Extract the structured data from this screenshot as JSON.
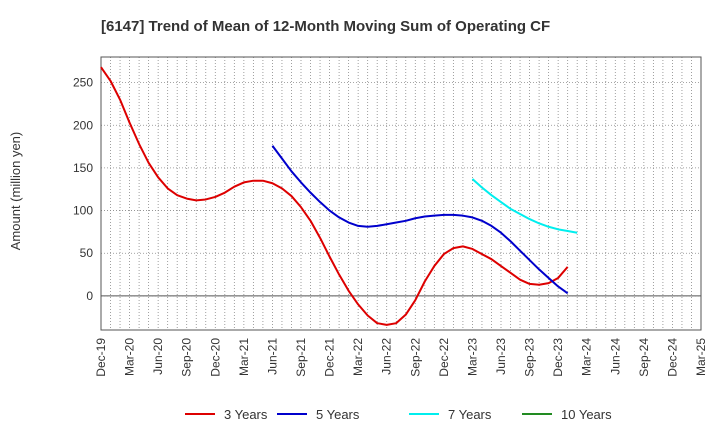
{
  "chart_data": {
    "type": "line",
    "title": "[6147]  Trend of Mean of 12-Month Moving Sum of Operating CF",
    "xlabel": "",
    "ylabel": "Amount (million yen)",
    "ylim": [
      -40,
      280
    ],
    "yticks": [
      0,
      50,
      100,
      150,
      200,
      250
    ],
    "grid": true,
    "legend_position": "bottom-center",
    "x_range_months": [
      0,
      63
    ],
    "x_ticks": [
      {
        "label": "Dec-19",
        "month": 0
      },
      {
        "label": "Mar-20",
        "month": 3
      },
      {
        "label": "Jun-20",
        "month": 6
      },
      {
        "label": "Sep-20",
        "month": 9
      },
      {
        "label": "Dec-20",
        "month": 12
      },
      {
        "label": "Mar-21",
        "month": 15
      },
      {
        "label": "Jun-21",
        "month": 18
      },
      {
        "label": "Sep-21",
        "month": 21
      },
      {
        "label": "Dec-21",
        "month": 24
      },
      {
        "label": "Mar-22",
        "month": 27
      },
      {
        "label": "Jun-22",
        "month": 30
      },
      {
        "label": "Sep-22",
        "month": 33
      },
      {
        "label": "Dec-22",
        "month": 36
      },
      {
        "label": "Mar-23",
        "month": 39
      },
      {
        "label": "Jun-23",
        "month": 42
      },
      {
        "label": "Sep-23",
        "month": 45
      },
      {
        "label": "Dec-23",
        "month": 48
      },
      {
        "label": "Mar-24",
        "month": 51
      },
      {
        "label": "Jun-24",
        "month": 54
      },
      {
        "label": "Sep-24",
        "month": 57
      },
      {
        "label": "Dec-24",
        "month": 60
      },
      {
        "label": "Mar-25",
        "month": 63
      }
    ],
    "series": [
      {
        "name": "3 Years",
        "color": "#dd0000",
        "points": [
          [
            0,
            268
          ],
          [
            1,
            252
          ],
          [
            2,
            230
          ],
          [
            3,
            203
          ],
          [
            4,
            178
          ],
          [
            5,
            156
          ],
          [
            6,
            139
          ],
          [
            7,
            126
          ],
          [
            8,
            118
          ],
          [
            9,
            114
          ],
          [
            10,
            112
          ],
          [
            11,
            113
          ],
          [
            12,
            116
          ],
          [
            13,
            121
          ],
          [
            14,
            128
          ],
          [
            15,
            133
          ],
          [
            16,
            135
          ],
          [
            17,
            135
          ],
          [
            18,
            132
          ],
          [
            19,
            126
          ],
          [
            20,
            117
          ],
          [
            21,
            104
          ],
          [
            22,
            88
          ],
          [
            23,
            68
          ],
          [
            24,
            46
          ],
          [
            25,
            25
          ],
          [
            26,
            6
          ],
          [
            27,
            -10
          ],
          [
            28,
            -23
          ],
          [
            29,
            -32
          ],
          [
            30,
            -34
          ],
          [
            31,
            -32
          ],
          [
            32,
            -22
          ],
          [
            33,
            -5
          ],
          [
            34,
            17
          ],
          [
            35,
            35
          ],
          [
            36,
            49
          ],
          [
            37,
            56
          ],
          [
            38,
            58
          ],
          [
            39,
            55
          ],
          [
            40,
            49
          ],
          [
            41,
            43
          ],
          [
            42,
            35
          ],
          [
            43,
            27
          ],
          [
            44,
            19
          ],
          [
            45,
            14
          ],
          [
            46,
            13
          ],
          [
            47,
            15
          ],
          [
            48,
            21
          ],
          [
            49,
            34
          ]
        ]
      },
      {
        "name": "5 Years",
        "color": "#0000cc",
        "points": [
          [
            18,
            176
          ],
          [
            19,
            161
          ],
          [
            20,
            146
          ],
          [
            21,
            133
          ],
          [
            22,
            121
          ],
          [
            23,
            110
          ],
          [
            24,
            100
          ],
          [
            25,
            92
          ],
          [
            26,
            86
          ],
          [
            27,
            82
          ],
          [
            28,
            81
          ],
          [
            29,
            82
          ],
          [
            30,
            84
          ],
          [
            31,
            86
          ],
          [
            32,
            88
          ],
          [
            33,
            91
          ],
          [
            34,
            93
          ],
          [
            35,
            94
          ],
          [
            36,
            95
          ],
          [
            37,
            95
          ],
          [
            38,
            94
          ],
          [
            39,
            92
          ],
          [
            40,
            88
          ],
          [
            41,
            82
          ],
          [
            42,
            74
          ],
          [
            43,
            64
          ],
          [
            44,
            53
          ],
          [
            45,
            42
          ],
          [
            46,
            31
          ],
          [
            47,
            21
          ],
          [
            48,
            11
          ],
          [
            49,
            3
          ]
        ]
      },
      {
        "name": "7 Years",
        "color": "#00eeee",
        "points": [
          [
            39,
            137
          ],
          [
            40,
            127
          ],
          [
            41,
            118
          ],
          [
            42,
            110
          ],
          [
            43,
            102
          ],
          [
            44,
            96
          ],
          [
            45,
            90
          ],
          [
            46,
            85
          ],
          [
            47,
            81
          ],
          [
            48,
            78
          ],
          [
            49,
            76
          ],
          [
            50,
            74
          ]
        ]
      },
      {
        "name": "10 Years",
        "color": "#228b22",
        "points": []
      }
    ]
  }
}
